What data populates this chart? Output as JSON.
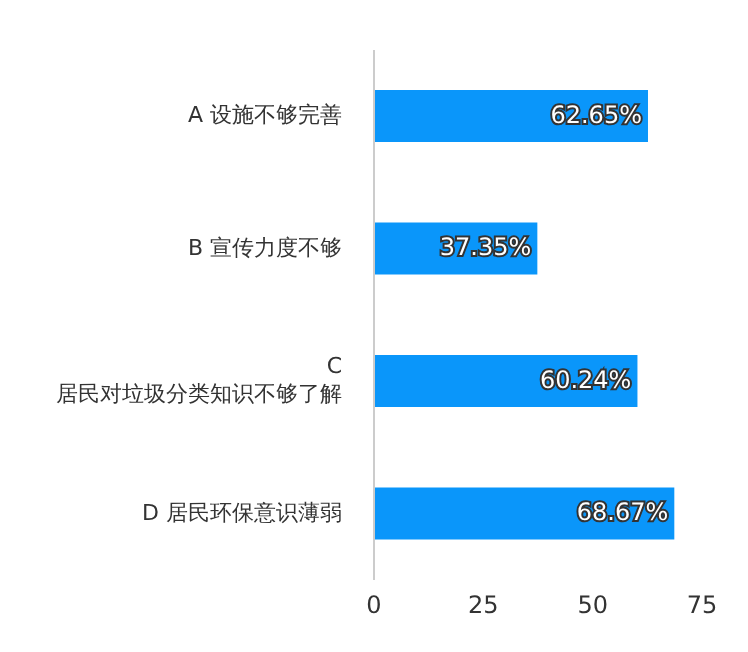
{
  "chart_data": {
    "type": "bar",
    "orientation": "horizontal",
    "categories": [
      "A 设施不够完善",
      "B 宣传力度不够",
      "C\n居民对垃圾分类知识不够了解",
      "D 居民环保意识薄弱"
    ],
    "values": [
      62.65,
      37.35,
      60.24,
      68.67
    ],
    "value_labels": [
      "62.65%",
      "37.35%",
      "60.24%",
      "68.67%"
    ],
    "color": "#0a96fa",
    "xlim": [
      0,
      75
    ],
    "xticks": [
      0,
      25,
      50,
      75
    ],
    "grid": false,
    "legend": false
  }
}
